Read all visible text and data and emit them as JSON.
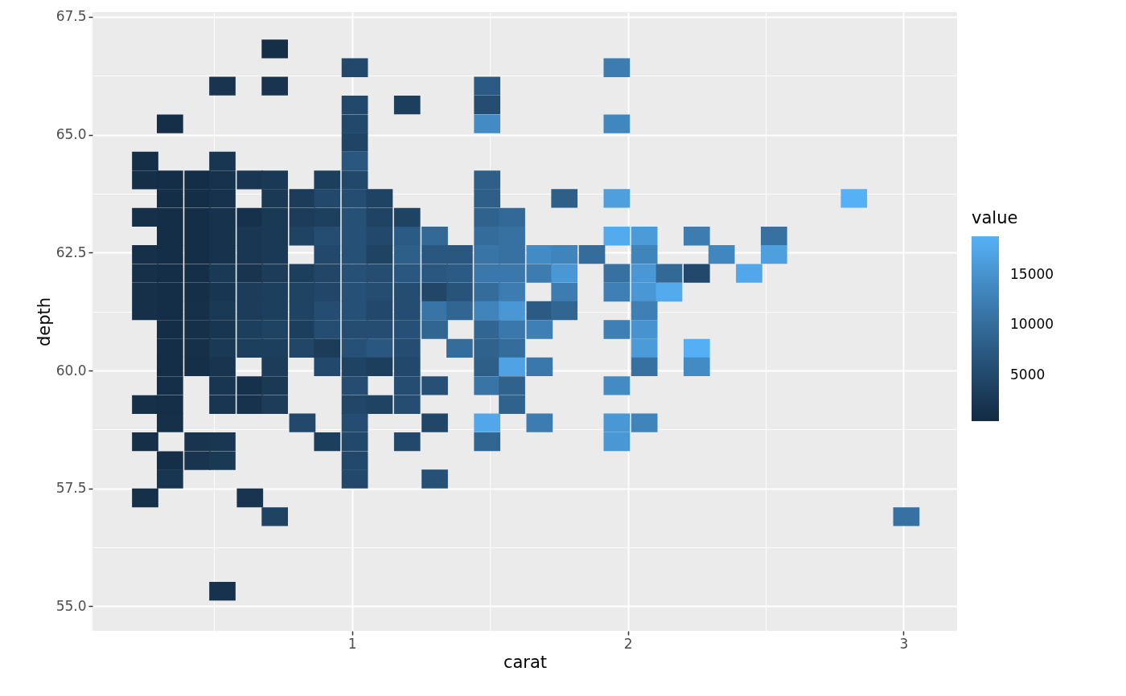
{
  "chart_data": {
    "type": "scatter",
    "xlabel": "carat",
    "ylabel": "depth",
    "clabel": "value",
    "marker": "square",
    "grid": true,
    "xlim": [
      0.059,
      3.194
    ],
    "ylim": [
      54.48,
      67.6
    ],
    "xticks": [
      {
        "value": 0.5,
        "label": null
      },
      1,
      {
        "value": 1.5,
        "label": null
      },
      2,
      {
        "value": 2.5,
        "label": null
      },
      3
    ],
    "yticks": [
      {
        "value": 55,
        "label": "55.0"
      },
      {
        "value": 56.25,
        "label": null
      },
      57.5,
      {
        "value": 58.75,
        "label": null
      },
      {
        "value": 60,
        "label": "60.0"
      },
      {
        "value": 61.25,
        "label": null
      },
      62.5,
      {
        "value": 63.75,
        "label": null
      },
      {
        "value": 65,
        "label": "65.0"
      },
      {
        "value": 66.25,
        "label": null
      },
      67.5
    ],
    "clim": [
      400,
      18800
    ],
    "cticks": [
      5000,
      10000,
      15000
    ],
    "series": [
      {
        "x": [
          0.72,
          1.01,
          1.96,
          0.53,
          0.72,
          1.49,
          1.01,
          1.2,
          1.49,
          0.34,
          1.01,
          1.49,
          1.96,
          1.01,
          0.25,
          0.53,
          1.01,
          0.25,
          0.34,
          0.44,
          0.53,
          0.63,
          0.72,
          0.91,
          1.01,
          1.49,
          0.34,
          0.44,
          0.53,
          0.72,
          0.82,
          0.91,
          1.01,
          1.1,
          1.49,
          1.77,
          1.96,
          2.82,
          0.25,
          0.34,
          0.44,
          0.53,
          0.63,
          0.72,
          0.82,
          0.91,
          1.01,
          1.1,
          1.2,
          1.49,
          1.58,
          0.34,
          0.44,
          0.53,
          0.63,
          0.72,
          0.82,
          0.91,
          1.01,
          1.1,
          1.2,
          1.3,
          1.49,
          1.58,
          1.96,
          2.06,
          2.25,
          2.53,
          0.25,
          0.34,
          0.44,
          0.53,
          0.63,
          0.72,
          0.91,
          1.01,
          1.1,
          1.2,
          1.3,
          1.39,
          1.49,
          1.58,
          1.68,
          1.77,
          1.87,
          2.06,
          2.34,
          2.53,
          0.25,
          0.34,
          0.44,
          0.53,
          0.63,
          0.72,
          0.82,
          0.91,
          1.01,
          1.1,
          1.2,
          1.3,
          1.39,
          1.49,
          1.58,
          1.68,
          1.77,
          1.96,
          2.06,
          2.15,
          2.25,
          2.44,
          0.25,
          0.34,
          0.44,
          0.53,
          0.63,
          0.72,
          0.82,
          0.91,
          1.01,
          1.1,
          1.2,
          1.3,
          1.39,
          1.49,
          1.58,
          1.77,
          1.96,
          2.06,
          2.15,
          0.25,
          0.34,
          0.44,
          0.53,
          0.63,
          0.72,
          0.82,
          0.91,
          1.01,
          1.1,
          1.2,
          1.3,
          1.39,
          1.49,
          1.58,
          1.68,
          1.77,
          2.06,
          0.34,
          0.44,
          0.53,
          0.63,
          0.72,
          0.82,
          0.91,
          1.01,
          1.1,
          1.2,
          1.3,
          1.49,
          1.58,
          1.68,
          1.96,
          2.06,
          0.34,
          0.44,
          0.53,
          0.63,
          0.72,
          0.82,
          0.91,
          1.01,
          1.1,
          1.2,
          1.39,
          1.49,
          1.58,
          2.06,
          2.25,
          0.34,
          0.44,
          0.53,
          0.72,
          0.91,
          1.01,
          1.1,
          1.2,
          1.49,
          1.58,
          1.68,
          2.06,
          2.25,
          0.34,
          0.53,
          0.63,
          0.72,
          1.01,
          1.2,
          1.3,
          1.49,
          1.58,
          1.96,
          0.25,
          0.34,
          0.53,
          0.63,
          0.72,
          1.01,
          1.1,
          1.2,
          1.58,
          0.34,
          0.82,
          1.01,
          1.3,
          1.49,
          1.68,
          1.96,
          2.06,
          0.25,
          0.44,
          0.53,
          0.91,
          1.01,
          1.2,
          1.49,
          1.96,
          0.34,
          0.44,
          0.53,
          1.01,
          0.34,
          1.01,
          1.3,
          0.25,
          0.63,
          0.72,
          3.01,
          0.53
        ],
        "values": [
          66.82,
          66.42,
          66.42,
          66.03,
          66.03,
          66.03,
          65.63,
          65.63,
          65.63,
          65.23,
          65.23,
          65.23,
          65.23,
          64.84,
          64.44,
          64.44,
          64.44,
          64.04,
          64.04,
          64.04,
          64.04,
          64.04,
          64.04,
          64.04,
          64.04,
          64.04,
          63.65,
          63.65,
          63.65,
          63.65,
          63.65,
          63.65,
          63.65,
          63.65,
          63.65,
          63.65,
          63.65,
          63.65,
          63.25,
          63.25,
          63.25,
          63.25,
          63.25,
          63.25,
          63.25,
          63.25,
          63.25,
          63.25,
          63.25,
          63.25,
          63.25,
          62.85,
          62.85,
          62.85,
          62.85,
          62.85,
          62.85,
          62.85,
          62.85,
          62.85,
          62.85,
          62.85,
          62.85,
          62.85,
          62.85,
          62.85,
          62.85,
          62.85,
          62.46,
          62.46,
          62.46,
          62.46,
          62.46,
          62.46,
          62.46,
          62.46,
          62.46,
          62.46,
          62.46,
          62.46,
          62.46,
          62.46,
          62.46,
          62.46,
          62.46,
          62.46,
          62.46,
          62.46,
          62.06,
          62.06,
          62.06,
          62.06,
          62.06,
          62.06,
          62.06,
          62.06,
          62.06,
          62.06,
          62.06,
          62.06,
          62.06,
          62.06,
          62.06,
          62.06,
          62.06,
          62.06,
          62.06,
          62.06,
          62.06,
          62.06,
          61.66,
          61.66,
          61.66,
          61.66,
          61.66,
          61.66,
          61.66,
          61.66,
          61.66,
          61.66,
          61.66,
          61.66,
          61.66,
          61.66,
          61.66,
          61.66,
          61.66,
          61.66,
          61.66,
          61.27,
          61.27,
          61.27,
          61.27,
          61.27,
          61.27,
          61.27,
          61.27,
          61.27,
          61.27,
          61.27,
          61.27,
          61.27,
          61.27,
          61.27,
          61.27,
          61.27,
          61.27,
          60.87,
          60.87,
          60.87,
          60.87,
          60.87,
          60.87,
          60.87,
          60.87,
          60.87,
          60.87,
          60.87,
          60.87,
          60.87,
          60.87,
          60.87,
          60.87,
          60.47,
          60.47,
          60.47,
          60.47,
          60.47,
          60.47,
          60.47,
          60.47,
          60.47,
          60.47,
          60.47,
          60.47,
          60.47,
          60.47,
          60.47,
          60.08,
          60.08,
          60.08,
          60.08,
          60.08,
          60.08,
          60.08,
          60.08,
          60.08,
          60.08,
          60.08,
          60.08,
          60.08,
          59.68,
          59.68,
          59.68,
          59.68,
          59.68,
          59.68,
          59.68,
          59.68,
          59.68,
          59.68,
          59.28,
          59.28,
          59.28,
          59.28,
          59.28,
          59.28,
          59.28,
          59.28,
          59.28,
          58.89,
          58.89,
          58.89,
          58.89,
          58.89,
          58.89,
          58.89,
          58.89,
          58.49,
          58.49,
          58.49,
          58.49,
          58.49,
          58.49,
          58.49,
          58.49,
          58.09,
          58.09,
          58.09,
          58.09,
          57.7,
          57.7,
          57.7,
          57.3,
          57.3,
          56.9,
          56.9,
          55.32
        ],
        "cvalues": [
          1000,
          5000,
          12000,
          1800,
          1800,
          7500,
          5000,
          3500,
          5500,
          1000,
          5000,
          14000,
          13500,
          4200,
          1000,
          2000,
          7000,
          1000,
          900,
          900,
          1500,
          2200,
          2600,
          3500,
          5000,
          8000,
          900,
          900,
          1500,
          2500,
          3000,
          5000,
          5500,
          4000,
          8000,
          8000,
          16500,
          18700,
          1200,
          900,
          900,
          1500,
          1400,
          2500,
          3000,
          3600,
          6000,
          4000,
          4000,
          8500,
          9500,
          900,
          900,
          1500,
          2200,
          2600,
          4000,
          5500,
          6000,
          5000,
          7500,
          9500,
          10000,
          10500,
          18000,
          16000,
          12000,
          10500,
          1200,
          900,
          900,
          1500,
          2200,
          2600,
          5000,
          6000,
          4000,
          8000,
          7000,
          7000,
          11000,
          10500,
          14000,
          13000,
          10000,
          13000,
          13500,
          16500,
          1200,
          900,
          1000,
          2500,
          1800,
          3000,
          3500,
          4500,
          6000,
          5500,
          7000,
          7000,
          7500,
          11500,
          11500,
          12000,
          15500,
          10500,
          15500,
          9500,
          5000,
          17500,
          1200,
          900,
          1000,
          2000,
          3000,
          3500,
          4000,
          4500,
          6000,
          5500,
          5500,
          4500,
          6500,
          10000,
          12000,
          12000,
          12500,
          15500,
          18000,
          1200,
          900,
          1200,
          2500,
          3000,
          3500,
          4000,
          5500,
          6000,
          5000,
          5500,
          11000,
          9000,
          13000,
          15500,
          7500,
          9000,
          12500,
          900,
          1200,
          2000,
          3500,
          4000,
          3500,
          5500,
          5500,
          5500,
          6000,
          9000,
          9000,
          11500,
          12500,
          12500,
          15000,
          900,
          1200,
          2500,
          3500,
          3500,
          4500,
          3000,
          6000,
          7000,
          5500,
          10000,
          8500,
          10000,
          16000,
          18500,
          900,
          1000,
          1800,
          3000,
          5000,
          4000,
          3500,
          5000,
          8000,
          17000,
          11500,
          10500,
          14000,
          1000,
          2000,
          1300,
          2500,
          5500,
          5500,
          6000,
          11000,
          8500,
          14000,
          1200,
          1000,
          2000,
          1500,
          3000,
          4500,
          4000,
          5500,
          8500,
          1200,
          5000,
          5500,
          4500,
          17500,
          12000,
          15500,
          13000,
          1200,
          1800,
          2200,
          3500,
          5000,
          5000,
          9000,
          15500,
          1000,
          1800,
          2500,
          5000,
          2000,
          5000,
          6000,
          1200,
          1800,
          4000,
          10500,
          1500
        ]
      }
    ]
  }
}
